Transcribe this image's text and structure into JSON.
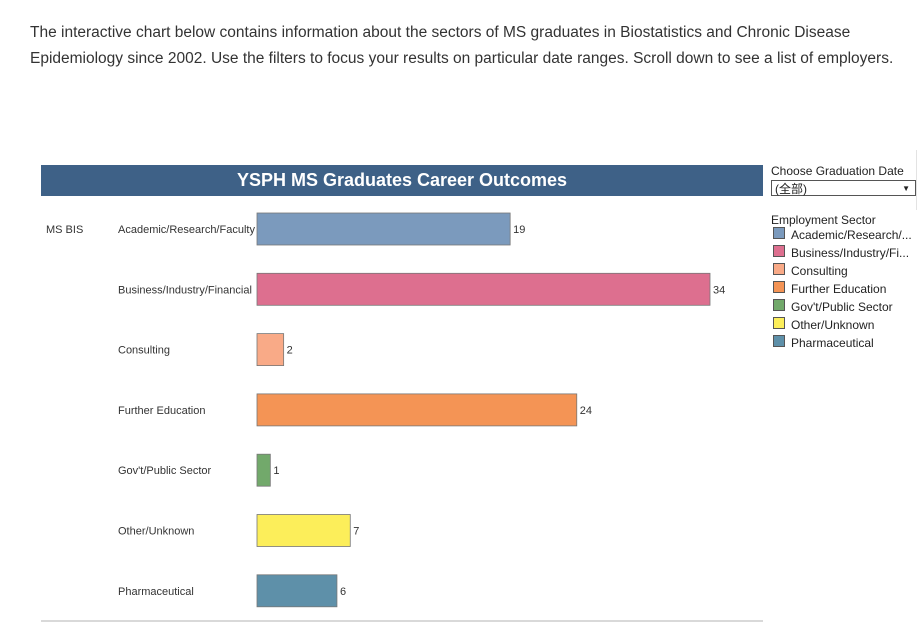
{
  "intro_text": "The interactive chart below contains information about the sectors of MS graduates in Biostatistics and Chronic Disease Epidemiology since 2002. Use the filters to focus your results on particular date ranges. Scroll down to see a list of employers.",
  "filter": {
    "label": "Choose Graduation Date",
    "selected": "(全部)"
  },
  "legend": {
    "title": "Employment Sector",
    "items": [
      {
        "label": "Academic/Research/...",
        "color": "#7b9abd"
      },
      {
        "label": "Business/Industry/Fi...",
        "color": "#dd6f8f"
      },
      {
        "label": "Consulting",
        "color": "#f9aa87"
      },
      {
        "label": "Further Education",
        "color": "#f49455"
      },
      {
        "label": "Gov't/Public Sector",
        "color": "#72a96b"
      },
      {
        "label": "Other/Unknown",
        "color": "#fcee5a"
      },
      {
        "label": "Pharmaceutical",
        "color": "#5e90a9"
      }
    ]
  },
  "chart_data": {
    "type": "bar",
    "orientation": "horizontal",
    "title": "YSPH MS Graduates Career Outcomes",
    "row_header": "MS BIS",
    "categories": [
      "Academic/Research/Faculty",
      "Business/Industry/Financial",
      "Consulting",
      "Further Education",
      "Gov't/Public Sector",
      "Other/Unknown",
      "Pharmaceutical"
    ],
    "values": [
      19,
      34,
      2,
      24,
      1,
      7,
      6
    ],
    "colors": [
      "#7b9abd",
      "#dd6f8f",
      "#f9aa87",
      "#f49455",
      "#72a96b",
      "#fcee5a",
      "#5e90a9"
    ],
    "xlim": [
      0,
      34
    ],
    "xlabel": "",
    "ylabel": ""
  }
}
